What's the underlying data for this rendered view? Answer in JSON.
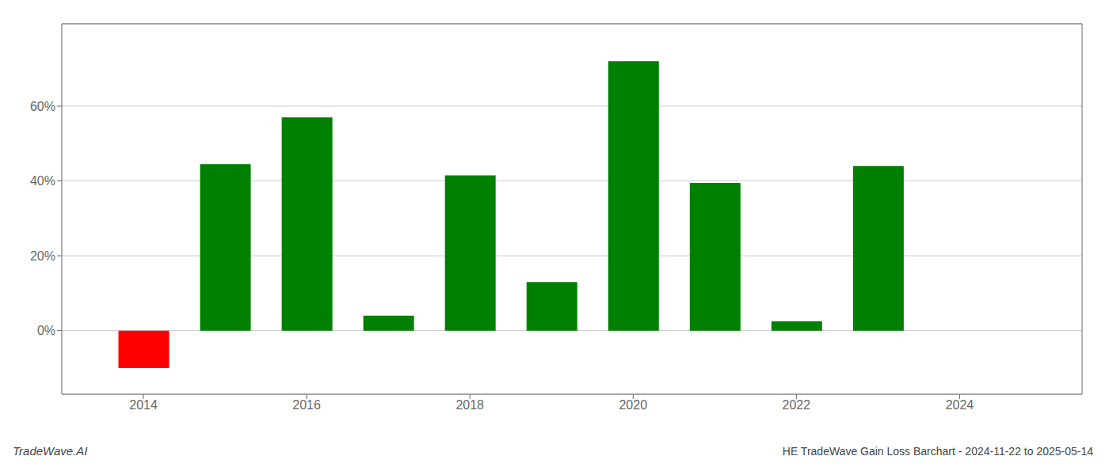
{
  "chart_data": {
    "type": "bar",
    "x": [
      2014,
      2015,
      2016,
      2017,
      2018,
      2019,
      2020,
      2021,
      2022,
      2023
    ],
    "values": [
      -10.0,
      44.5,
      57.0,
      4.0,
      41.5,
      13.0,
      72.0,
      39.5,
      2.5,
      44.0
    ],
    "colors": [
      "#ff0000",
      "#008000",
      "#008000",
      "#008000",
      "#008000",
      "#008000",
      "#008000",
      "#008000",
      "#008000",
      "#008000"
    ],
    "xlim": [
      2013.0,
      2025.5
    ],
    "ylim": [
      -17,
      82
    ],
    "xticks": [
      2014,
      2016,
      2018,
      2020,
      2022,
      2024
    ],
    "yticks": [
      {
        "value": 0,
        "label": "0%"
      },
      {
        "value": 20,
        "label": "20%"
      },
      {
        "value": 40,
        "label": "40%"
      },
      {
        "value": 60,
        "label": "60%"
      }
    ],
    "grid": true,
    "annotations": [
      "TradeWave.AI",
      "HE TradeWave Gain Loss Barchart - 2024-11-22 to 2025-05-14"
    ]
  }
}
